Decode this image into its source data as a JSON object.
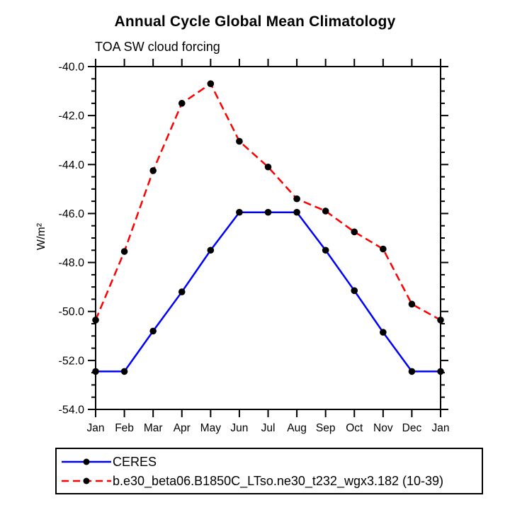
{
  "chart_data": {
    "type": "line",
    "title": "Annual Cycle Global Mean Climatology",
    "subtitle": "TOA SW cloud forcing",
    "ylabel": "W/m²",
    "categories": [
      "Jan",
      "Feb",
      "Mar",
      "Apr",
      "May",
      "Jun",
      "Jul",
      "Aug",
      "Sep",
      "Oct",
      "Nov",
      "Dec",
      "Jan"
    ],
    "ylim": [
      -54.0,
      -40.0
    ],
    "ytick_major_interval": 2.0,
    "ytick_minor_interval": 0.5,
    "ytick_labels": [
      "-40.0",
      "-42.0",
      "-44.0",
      "-46.0",
      "-48.0",
      "-50.0",
      "-52.0",
      "-54.0"
    ],
    "grid": false,
    "axis_color": "#000000",
    "marker_color": "#000000",
    "legend_position": "bottom-left",
    "series": [
      {
        "name": "CERES",
        "color": "#0000ff",
        "line_style": "solid",
        "marker": "filled-circle",
        "values": [
          -52.45,
          -52.45,
          -50.8,
          -49.2,
          -47.5,
          -45.95,
          -45.95,
          -45.95,
          -47.5,
          -49.15,
          -50.85,
          -52.45,
          -52.45
        ]
      },
      {
        "name": "b.e30_beta06.B1850C_LTso.ne30_t232_wgx3.182 (10-39)",
        "color": "#ff0000",
        "line_style": "dashed",
        "marker": "filled-circle",
        "values": [
          -50.35,
          -47.55,
          -44.25,
          -41.5,
          -40.7,
          -43.05,
          -44.1,
          -45.4,
          -45.9,
          -46.75,
          -47.45,
          -49.7,
          -50.35
        ]
      }
    ]
  }
}
